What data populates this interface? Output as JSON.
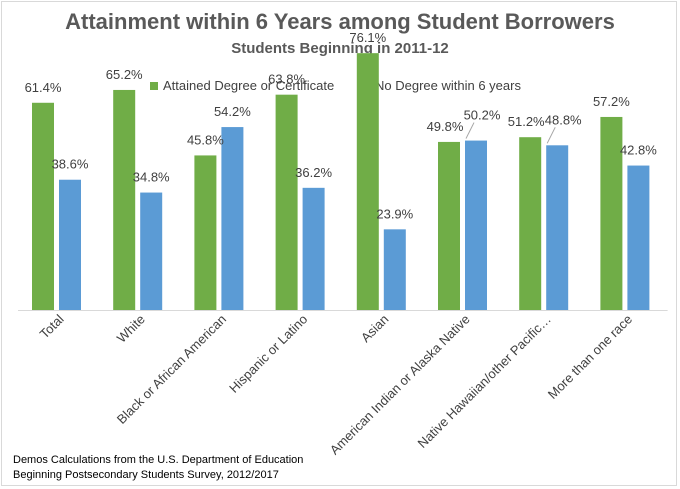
{
  "chart_data": {
    "type": "bar",
    "title": "Attainment within 6 Years among Student Borrowers",
    "subtitle": "Students Beginning in 2011-12",
    "categories": [
      "Total",
      "White",
      "Black or African American",
      "Hispanic or Latino",
      "Asian",
      "American Indian or Alaska Native",
      "Native Hawaiian/other Pacific…",
      "More than one race"
    ],
    "series": [
      {
        "name": "Attained Degree or Certificate",
        "color": "#70ad47",
        "values": [
          61.4,
          65.2,
          45.8,
          63.8,
          76.1,
          49.8,
          51.2,
          57.2
        ],
        "labels": [
          "61.4%",
          "65.2%",
          "45.8%",
          "63.8%",
          "76.1%",
          "49.8%",
          "51.2%",
          "57.2%"
        ]
      },
      {
        "name": "No Degree within 6 years",
        "color": "#5b9bd5",
        "values": [
          38.6,
          34.8,
          54.2,
          36.2,
          23.9,
          50.2,
          48.8,
          42.8
        ],
        "labels": [
          "38.6%",
          "34.8%",
          "54.2%",
          "36.2%",
          "23.9%",
          "50.2%",
          "48.8%",
          "42.8%"
        ]
      }
    ],
    "ylim": [
      0,
      80
    ],
    "legend_position": "top",
    "grid": false,
    "xlabel": "",
    "ylabel": ""
  },
  "source": {
    "line1": "Demos Calculations from the U.S. Department of Education",
    "line2": "Beginning Postsecondary Students Survey, 2012/2017"
  }
}
